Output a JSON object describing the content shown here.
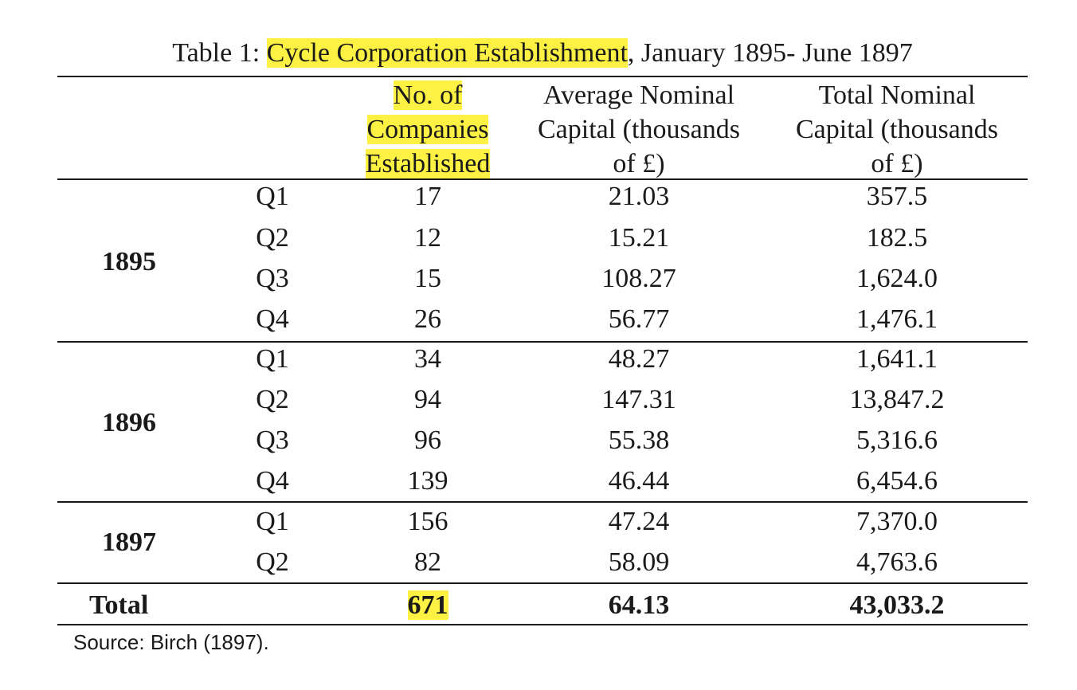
{
  "caption": {
    "prefix": "Table 1: ",
    "highlight": "Cycle Corporation Establishment",
    "suffix": ", January 1895- June 1897"
  },
  "headers": {
    "companies": [
      "No. of",
      "Companies",
      "Established"
    ],
    "avg_capital": [
      "Average Nominal",
      "Capital (thousands",
      "of £)"
    ],
    "total_capital": [
      "Total Nominal",
      "Capital (thousands",
      "of £)"
    ]
  },
  "years": [
    "1895",
    "1896",
    "1897"
  ],
  "rows": [
    {
      "q": "Q1",
      "n": "17",
      "avg": "21.03",
      "tot": "357.5"
    },
    {
      "q": "Q2",
      "n": "12",
      "avg": "15.21",
      "tot": "182.5"
    },
    {
      "q": "Q3",
      "n": "15",
      "avg": "108.27",
      "tot": "1,624.0"
    },
    {
      "q": "Q4",
      "n": "26",
      "avg": "56.77",
      "tot": "1,476.1"
    },
    {
      "q": "Q1",
      "n": "34",
      "avg": "48.27",
      "tot": "1,641.1"
    },
    {
      "q": "Q2",
      "n": "94",
      "avg": "147.31",
      "tot": "13,847.2"
    },
    {
      "q": "Q3",
      "n": "96",
      "avg": "55.38",
      "tot": "5,316.6"
    },
    {
      "q": "Q4",
      "n": "139",
      "avg": "46.44",
      "tot": "6,454.6"
    },
    {
      "q": "Q1",
      "n": "156",
      "avg": "47.24",
      "tot": "7,370.0"
    },
    {
      "q": "Q2",
      "n": "82",
      "avg": "58.09",
      "tot": "4,763.6"
    }
  ],
  "total": {
    "label": "Total",
    "n": "671",
    "avg": "64.13",
    "tot": "43,033.2"
  },
  "source": "Source: Birch (1897).",
  "colors": {
    "highlight": "#fdf243",
    "text": "#1a1a1a"
  }
}
